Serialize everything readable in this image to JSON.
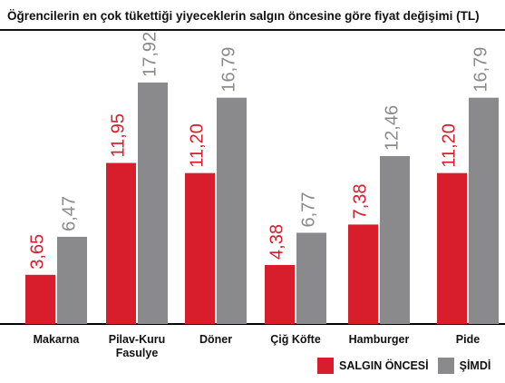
{
  "title": "Öğrencilerin en çok tükettiği yiyeceklerin salgın öncesine göre fiyat değişimi (TL)",
  "colors": {
    "before": "#d81e2c",
    "now": "#8a8a8c",
    "baseline": "#000000"
  },
  "chart_data": {
    "type": "bar",
    "title": "Öğrencilerin en çok tükettiği yiyeceklerin salgın öncesine göre fiyat değişimi (TL)",
    "categories": [
      [
        "Makarna"
      ],
      [
        "Pilav-Kuru",
        "Fasulye"
      ],
      [
        "Döner"
      ],
      [
        "Çiğ Köfte"
      ],
      [
        "Hamburger"
      ],
      [
        "Pide"
      ]
    ],
    "series": [
      {
        "name": "SALGIN ÖNCESİ",
        "values": [
          3.65,
          11.95,
          11.2,
          4.38,
          7.38,
          11.2
        ],
        "labels": [
          "3,65",
          "11,95",
          "11,20",
          "4,38",
          "7,38",
          "11,20"
        ]
      },
      {
        "name": "ŞİMDİ",
        "values": [
          6.47,
          17.92,
          16.79,
          6.77,
          12.46,
          16.79
        ],
        "labels": [
          "6,47",
          "17,92",
          "16,79",
          "6,77",
          "12,46",
          "16,79"
        ]
      }
    ],
    "ylim": [
      0,
      20
    ],
    "grid": false,
    "legend": "bottom-right"
  }
}
